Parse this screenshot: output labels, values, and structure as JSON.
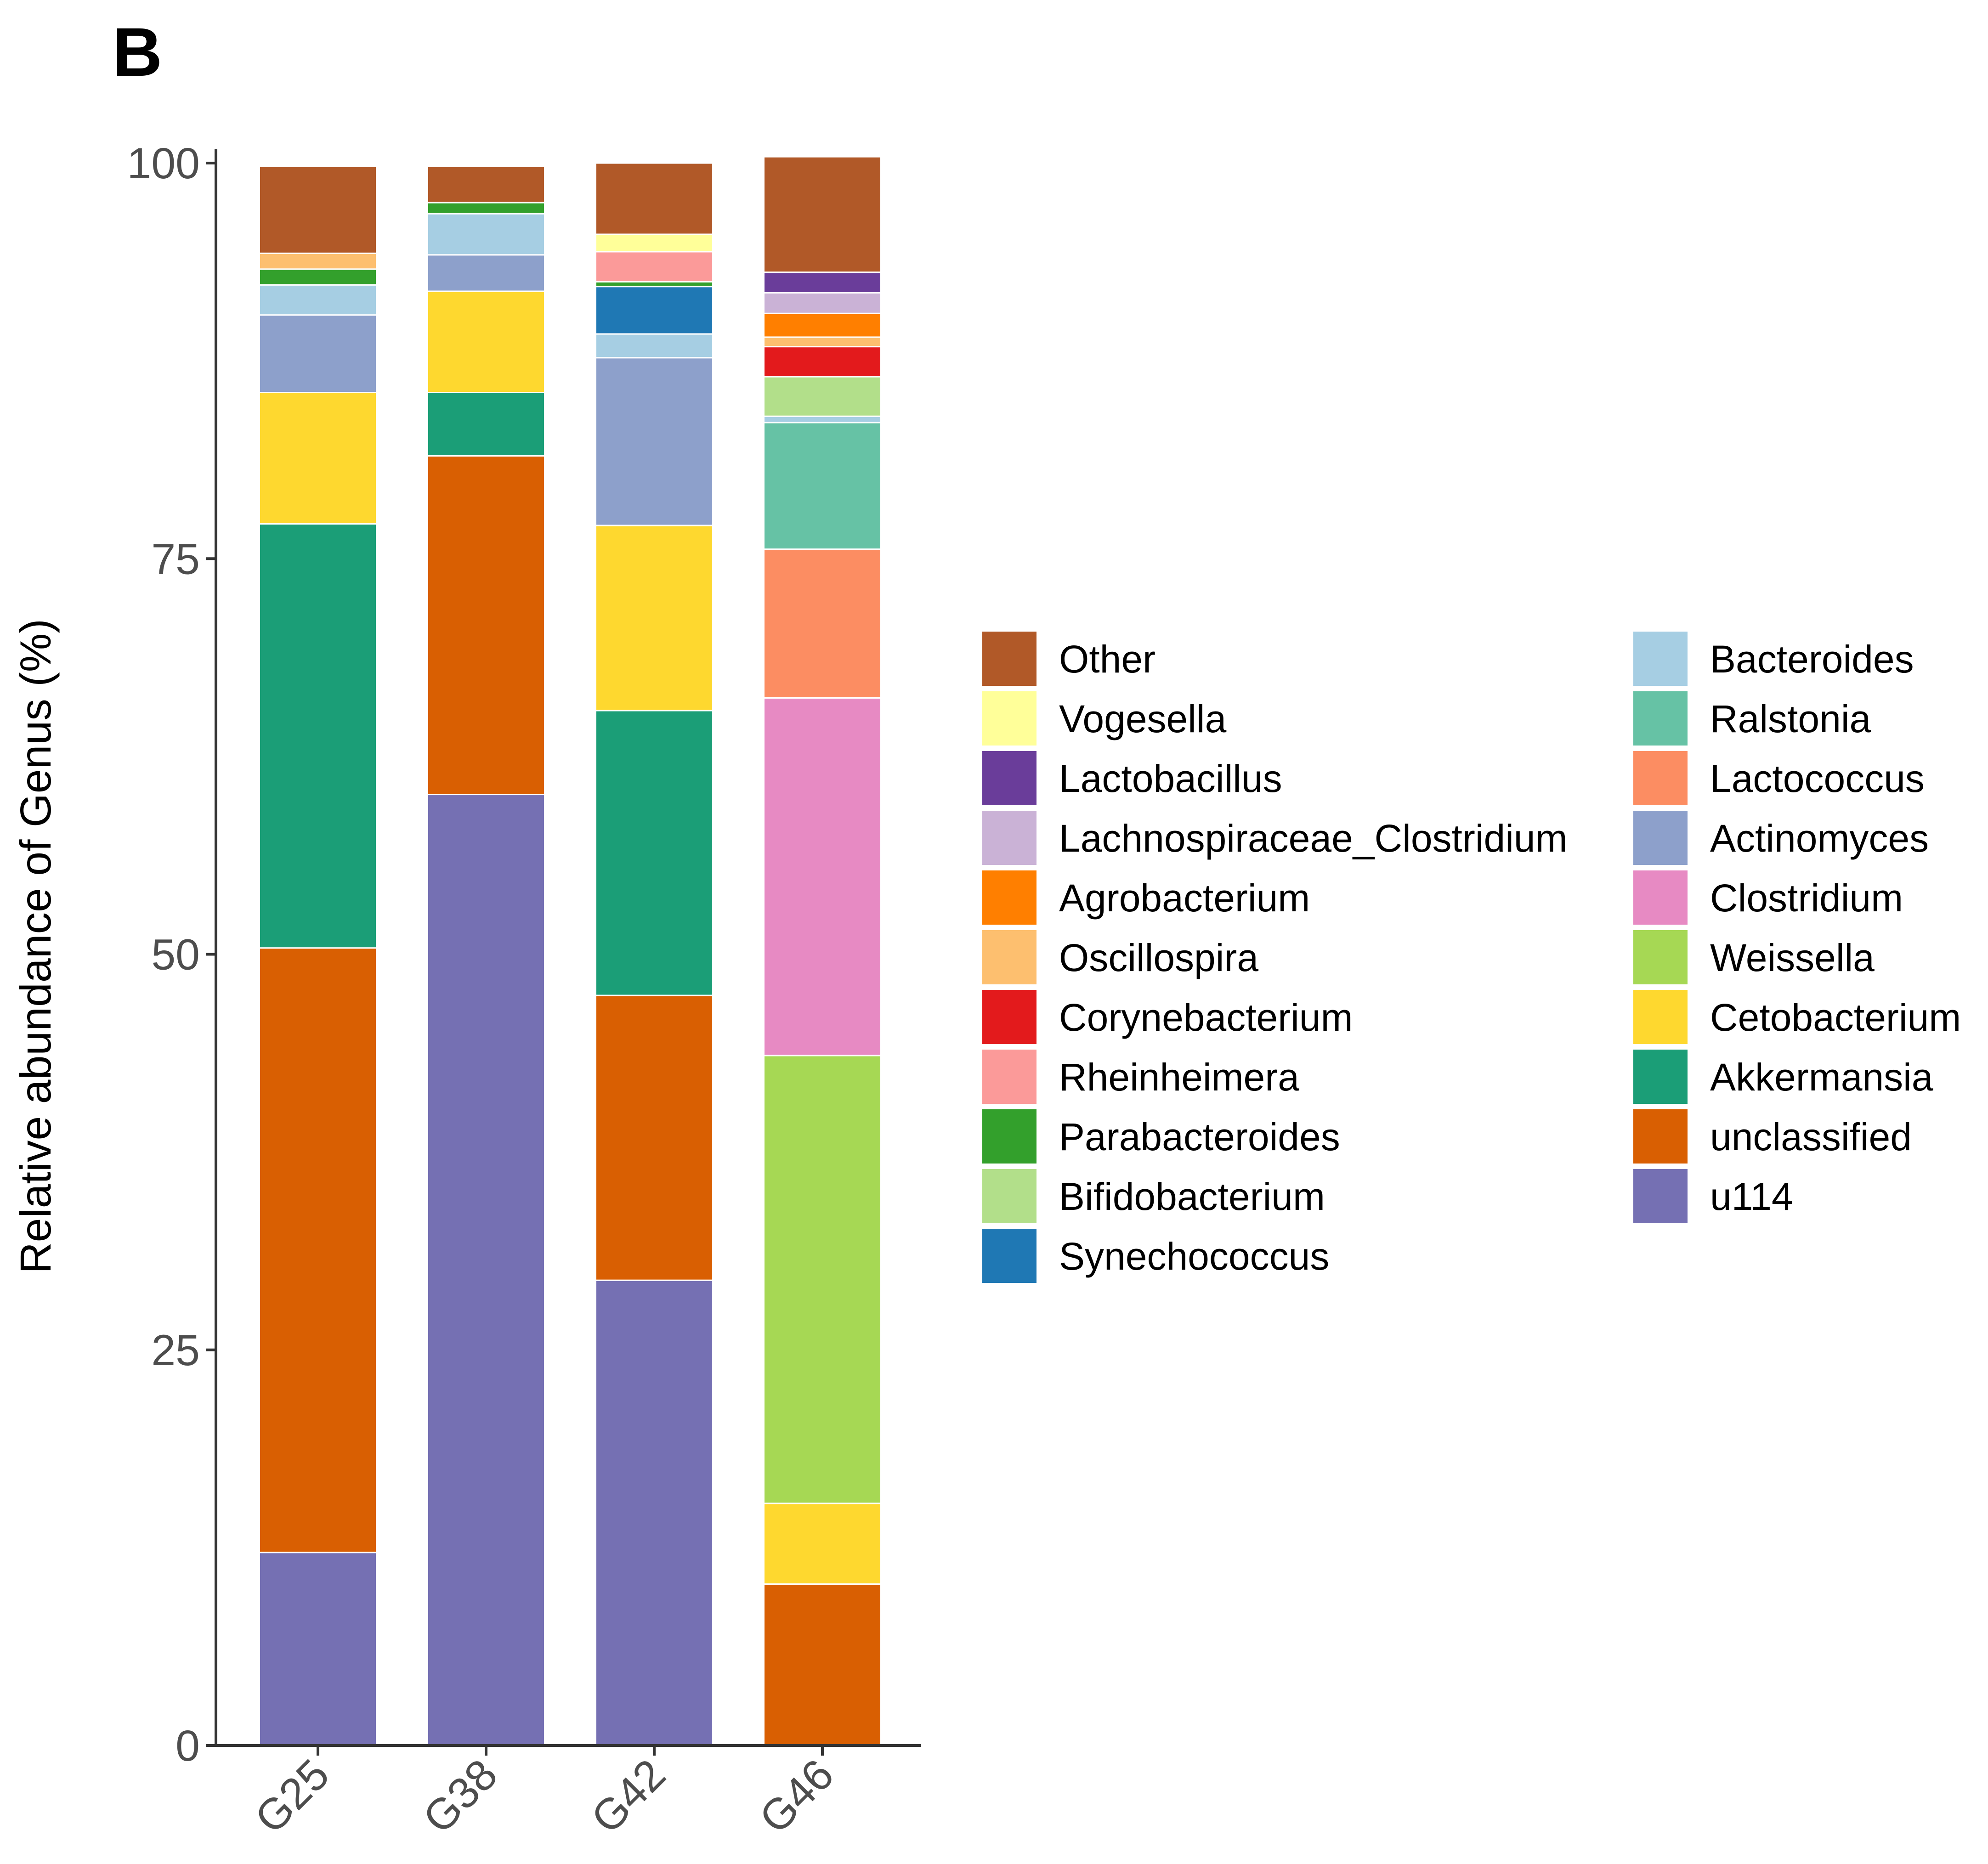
{
  "panel_label": "B",
  "chart_data": {
    "type": "bar",
    "stacked": true,
    "title": "",
    "xlabel": "",
    "ylabel": "Relative abundance of Genus (%)",
    "ylim": [
      0,
      100
    ],
    "yticks": [
      0,
      25,
      50,
      75,
      100
    ],
    "grid": false,
    "legend_position": "right",
    "categories": [
      "G25",
      "G38",
      "G42",
      "G46"
    ],
    "series": [
      {
        "name": "u114",
        "color": "#7570b3",
        "values": [
          12.2,
          60.1,
          29.4,
          0
        ]
      },
      {
        "name": "unclassified",
        "color": "#d95f02",
        "values": [
          38.2,
          21.4,
          18.0,
          10.2
        ]
      },
      {
        "name": "Akkermansia",
        "color": "#1b9e77",
        "values": [
          26.8,
          4.0,
          18.0,
          0
        ]
      },
      {
        "name": "Cetobacterium",
        "color": "#fed82f",
        "values": [
          8.3,
          6.4,
          11.7,
          5.1
        ]
      },
      {
        "name": "Weissella",
        "color": "#a6d854",
        "values": [
          0,
          0,
          0,
          28.3
        ]
      },
      {
        "name": "Clostridium",
        "color": "#e78ac3",
        "values": [
          0,
          0,
          0,
          22.6
        ]
      },
      {
        "name": "Actinomyces",
        "color": "#8da0cb",
        "values": [
          4.9,
          2.3,
          10.6,
          0
        ]
      },
      {
        "name": "Lactococcus",
        "color": "#fc8d62",
        "values": [
          0,
          0,
          0,
          9.4
        ]
      },
      {
        "name": "Ralstonia",
        "color": "#66c2a5",
        "values": [
          0,
          0,
          0,
          8.0
        ]
      },
      {
        "name": "Bacteroides",
        "color": "#a6cee3",
        "values": [
          1.9,
          2.6,
          1.5,
          0.4
        ]
      },
      {
        "name": "Synechococcus",
        "color": "#1f78b4",
        "values": [
          0,
          0,
          3.0,
          0
        ]
      },
      {
        "name": "Bifidobacterium",
        "color": "#b2df8a",
        "values": [
          0,
          0,
          0,
          2.5
        ]
      },
      {
        "name": "Parabacteroides",
        "color": "#33a02c",
        "values": [
          1.0,
          0.7,
          0.3,
          0
        ]
      },
      {
        "name": "Rheinheimera",
        "color": "#fb9a99",
        "values": [
          0,
          0,
          1.9,
          0
        ]
      },
      {
        "name": "Corynebacterium",
        "color": "#e31a1c",
        "values": [
          0,
          0,
          0,
          1.9
        ]
      },
      {
        "name": "Oscillospira",
        "color": "#fdbf6f",
        "values": [
          1.0,
          0,
          0,
          0.6
        ]
      },
      {
        "name": "Agrobacterium",
        "color": "#ff7f00",
        "values": [
          0,
          0,
          0,
          1.5
        ]
      },
      {
        "name": "Lachnospiraceae_Clostridium",
        "color": "#cab2d6",
        "values": [
          0,
          0,
          0,
          1.3
        ]
      },
      {
        "name": "Lactobacillus",
        "color": "#6a3d9a",
        "values": [
          0,
          0,
          0,
          1.3
        ]
      },
      {
        "name": "Vogesella",
        "color": "#ffff99",
        "values": [
          0,
          0,
          1.1,
          0
        ]
      },
      {
        "name": "Other",
        "color": "#b15928",
        "values": [
          5.5,
          2.3,
          4.5,
          7.3
        ]
      }
    ],
    "legend_col1": [
      "Other",
      "Vogesella",
      "Lactobacillus",
      "Lachnospiraceae_Clostridium",
      "Agrobacterium",
      "Oscillospira",
      "Corynebacterium",
      "Rheinheimera",
      "Parabacteroides",
      "Bifidobacterium",
      "Synechococcus"
    ],
    "legend_col2": [
      "Bacteroides",
      "Ralstonia",
      "Lactococcus",
      "Actinomyces",
      "Clostridium",
      "Weissella",
      "Cetobacterium",
      "Akkermansia",
      "unclassified",
      "u114"
    ]
  }
}
